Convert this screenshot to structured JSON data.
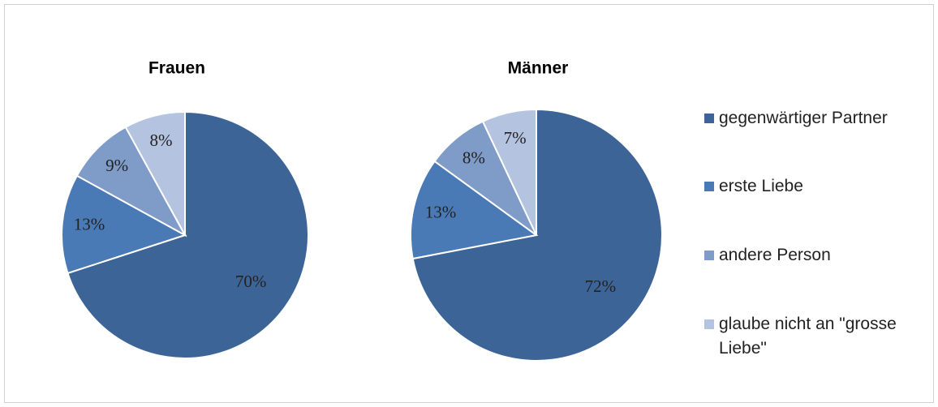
{
  "chart_data": [
    {
      "type": "pie",
      "title": "Frauen",
      "categories": [
        "gegenwärtiger Partner",
        "erste Liebe",
        "andere Person",
        "glaube nicht an \"grosse Liebe\""
      ],
      "values": [
        70,
        13,
        9,
        8
      ],
      "value_labels": [
        "70%",
        "13%",
        "9%",
        "8%"
      ],
      "colors": [
        "#3d6496",
        "#4a7ab5",
        "#7f9cc9",
        "#b4c4e0"
      ],
      "legend": "right"
    },
    {
      "type": "pie",
      "title": "Männer",
      "categories": [
        "gegenwärtiger Partner",
        "erste Liebe",
        "andere Person",
        "glaube nicht an \"grosse Liebe\""
      ],
      "values": [
        72,
        13,
        8,
        7
      ],
      "value_labels": [
        "72%",
        "13%",
        "8%",
        "7%"
      ],
      "colors": [
        "#3d6496",
        "#4a7ab5",
        "#7f9cc9",
        "#b4c4e0"
      ]
    }
  ]
}
